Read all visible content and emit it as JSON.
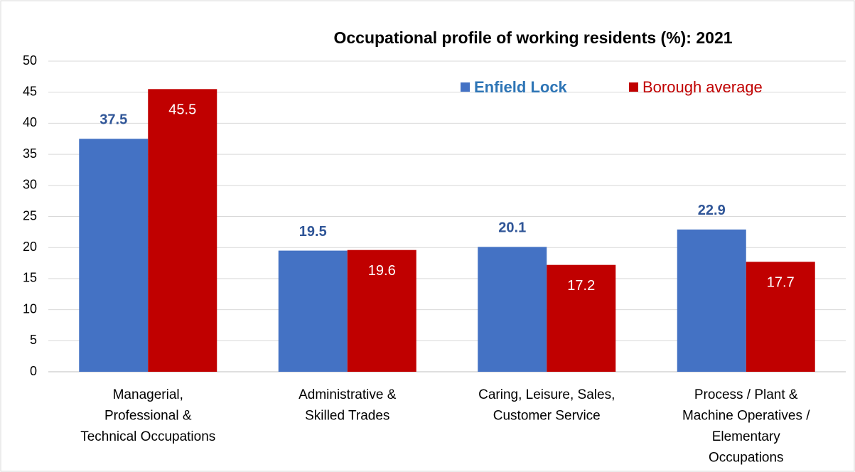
{
  "chart_data": {
    "type": "bar",
    "title": "Occupational profile of working residents (%):  2021",
    "categories": [
      "Managerial,\nProfessional &\nTechnical Occupations",
      "Administrative &\nSkilled Trades",
      "Caring, Leisure, Sales,\nCustomer Service",
      "Process / Plant &\nMachine Operatives /\nElementary\nOccupations"
    ],
    "series": [
      {
        "name": "Enfield Lock",
        "color": "#4472c4",
        "values": [
          37.5,
          19.5,
          20.1,
          22.9
        ]
      },
      {
        "name": "Borough average",
        "color": "#c00000",
        "values": [
          45.5,
          19.6,
          17.2,
          17.7
        ]
      }
    ],
    "ylim": [
      0,
      50
    ],
    "yticks": [
      0,
      5,
      10,
      15,
      20,
      25,
      30,
      35,
      40,
      45,
      50
    ],
    "grid": true,
    "legend": "top-right"
  }
}
